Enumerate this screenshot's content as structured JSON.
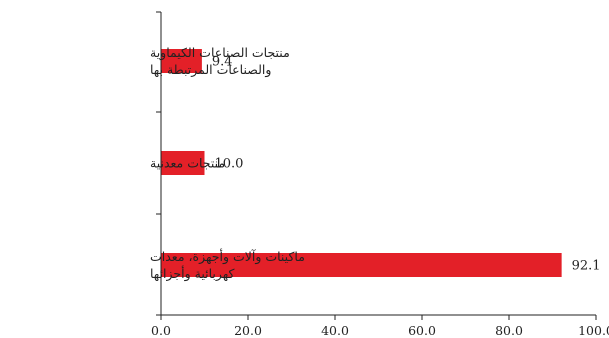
{
  "chart_data": {
    "type": "bar",
    "orientation": "horizontal",
    "categories": [
      [
        "منتجات الصناعات الكيماوية",
        "والصناعات المرتبطة بها"
      ],
      [
        "منتجات معدنية"
      ],
      [
        "ماكينات وآلات وأجهزة، معدات",
        "كهربائية وأجزائها"
      ]
    ],
    "values": [
      9.4,
      10.0,
      92.1
    ],
    "value_labels": [
      "9.4",
      "10.0",
      "92.1"
    ],
    "xlim": [
      0,
      100
    ],
    "x_ticks": [
      0,
      20,
      40,
      60,
      80,
      100
    ],
    "x_tick_labels": [
      "0.0",
      "20.0",
      "40.0",
      "60.0",
      "80.0",
      "100.0"
    ],
    "title": "",
    "xlabel": "",
    "ylabel": "",
    "grid": false,
    "bar_color": "#e32028"
  }
}
